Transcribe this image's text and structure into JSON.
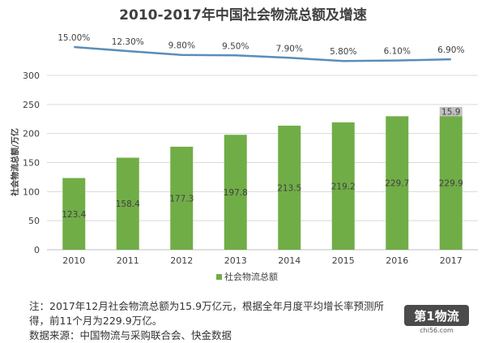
{
  "title": "2010-2017年中国社会物流总额及增速",
  "ylabel": "社会物流总额/万亿",
  "legend": "社会物流总额",
  "note_line1": "注：2017年12月社会物流总额为15.9万亿元，根据全年月度平均增长率预测所",
  "note_line2": "得，前11个月为229.9万亿。",
  "source": "数据来源：中国物流与采购联合会、快金数据",
  "logo_text": "第1物流",
  "logo_sub": "chi56.com",
  "colors": {
    "bar": "#70ad47",
    "bar_top": "#c0c0c0",
    "line": "#5b8db8",
    "grid": "#d9d9d9",
    "text": "#404040"
  },
  "chart_data": {
    "type": "bar",
    "title": "2010-2017年中国社会物流总额及增速",
    "xlabel": "",
    "ylabel": "社会物流总额/万亿",
    "ylim": [
      0,
      300
    ],
    "yticks": [
      0,
      50,
      100,
      150,
      200,
      250,
      300
    ],
    "categories": [
      "2010",
      "2011",
      "2012",
      "2013",
      "2014",
      "2015",
      "2016",
      "2017"
    ],
    "series": [
      {
        "name": "社会物流总额",
        "values": [
          123.4,
          158.4,
          177.3,
          197.8,
          213.5,
          219.2,
          229.7,
          229.9
        ],
        "labels": [
          "123.4",
          "158.4",
          "177.3",
          "197.8",
          "213.5",
          "219.2",
          "229.7",
          "229.9"
        ]
      }
    ],
    "stack_top": {
      "category": "2017",
      "value": 15.9,
      "label": "15.9"
    },
    "growth": {
      "values": [
        15.0,
        12.3,
        9.8,
        9.5,
        7.9,
        5.8,
        6.1,
        6.9
      ],
      "labels": [
        "15.00%",
        "12.30%",
        "9.80%",
        "9.50%",
        "7.90%",
        "5.80%",
        "6.10%",
        "6.90%"
      ]
    },
    "grid": true,
    "legend_position": "bottom"
  }
}
